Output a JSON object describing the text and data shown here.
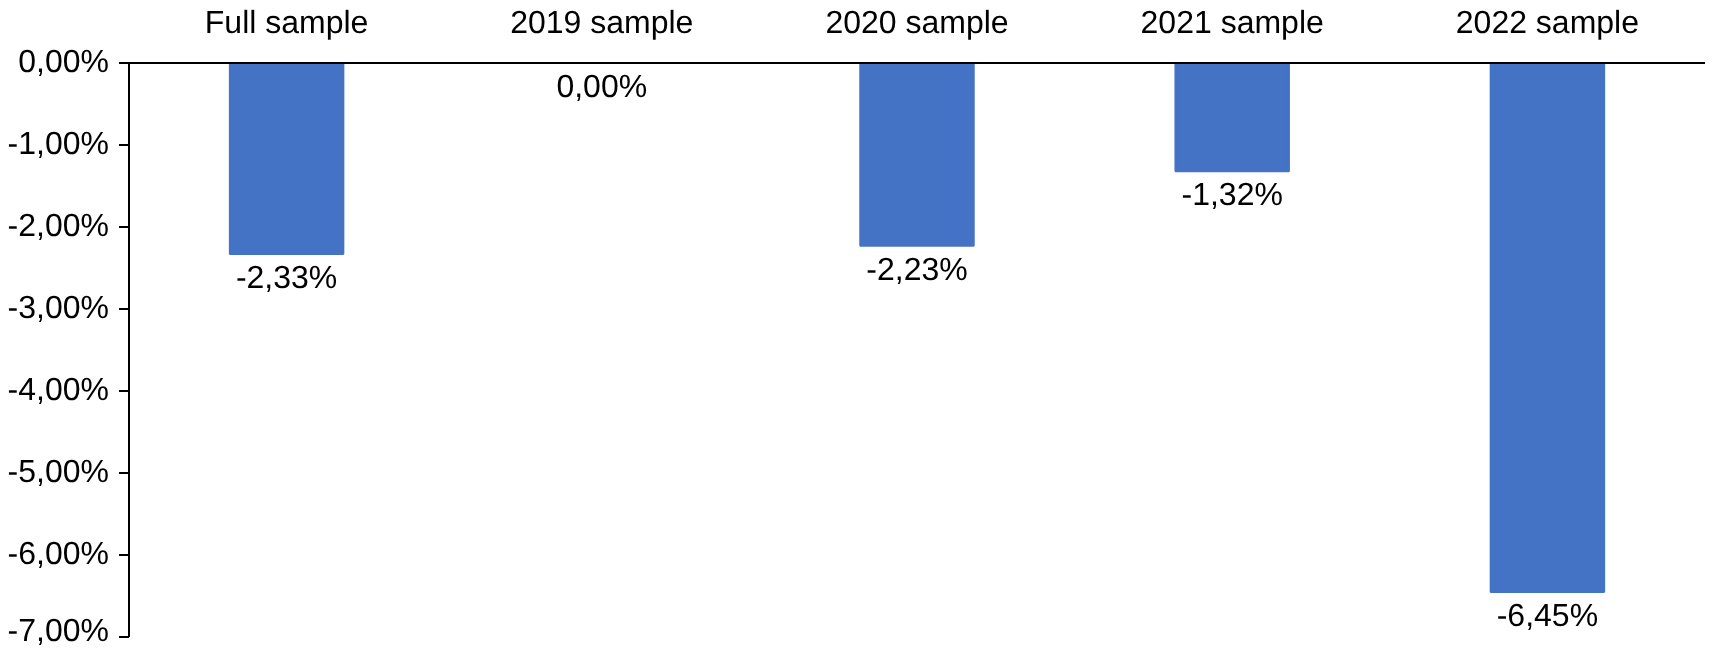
{
  "chart_data": {
    "type": "bar",
    "categories": [
      "Full sample",
      "2019 sample",
      "2020 sample",
      "2021 sample",
      "2022 sample"
    ],
    "values": [
      -2.33,
      0.0,
      -2.23,
      -1.32,
      -6.45
    ],
    "value_labels": [
      "-2,33%",
      "0,00%",
      "-2,23%",
      "-1,32%",
      "-6,45%"
    ],
    "color": "#4472c4",
    "ylim": [
      -7,
      0
    ],
    "yticks": [
      {
        "value": 0,
        "label": "0,00%"
      },
      {
        "value": -1,
        "label": "-1,00%"
      },
      {
        "value": -2,
        "label": "-2,00%"
      },
      {
        "value": -3,
        "label": "-3,00%"
      },
      {
        "value": -4,
        "label": "-4,00%"
      },
      {
        "value": -5,
        "label": "-5,00%"
      },
      {
        "value": -6,
        "label": "-6,00%"
      },
      {
        "value": -7,
        "label": "-7,00%"
      }
    ],
    "grid": false
  }
}
